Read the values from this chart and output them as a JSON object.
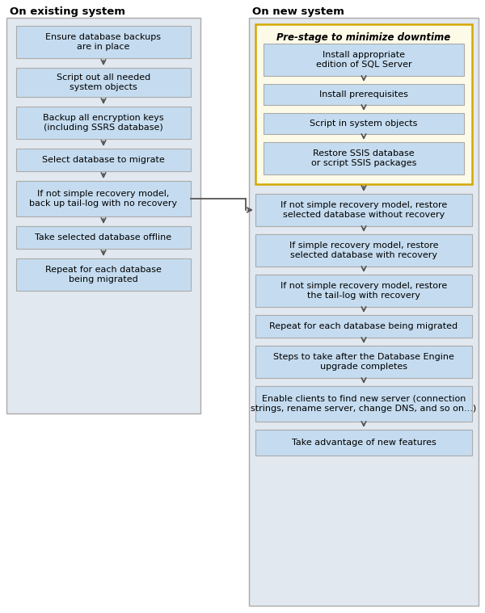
{
  "title_left": "On existing system",
  "title_right": "On new system",
  "box_color_blue": "#C5DCF0",
  "bg_color_panel": "#E2E8EF",
  "bg_color_yellow_group": "#FDFBE8",
  "border_yellow": "#D4A800",
  "border_panel": "#AAAAAA",
  "border_box": "#AAAAAA",
  "arrow_color": "#555555",
  "text_color": "#000000",
  "left_boxes": [
    "Ensure database backups\nare in place",
    "Script out all needed\nsystem objects",
    "Backup all encryption keys\n(including SSRS database)",
    "Select database to migrate",
    "If not simple recovery model,\nback up tail-log with no recovery",
    "Take selected database offline",
    "Repeat for each database\nbeing migrated"
  ],
  "pre_stage_label": "Pre-stage to minimize downtime",
  "pre_stage_boxes": [
    "Install appropriate\nedition of SQL Server",
    "Install prerequisites",
    "Script in system objects",
    "Restore SSIS database\nor script SSIS packages"
  ],
  "right_boxes": [
    "If not simple recovery model, restore\nselected database without recovery",
    "If simple recovery model, restore\nselected database with recovery",
    "If not simple recovery model, restore\nthe tail-log with recovery",
    "Repeat for each database being migrated",
    "Steps to take after the Database Engine\nupgrade completes",
    "Enable clients to find new server (connection\nstrings, rename server, change DNS, and so on...)",
    "Take advantage of new features"
  ]
}
